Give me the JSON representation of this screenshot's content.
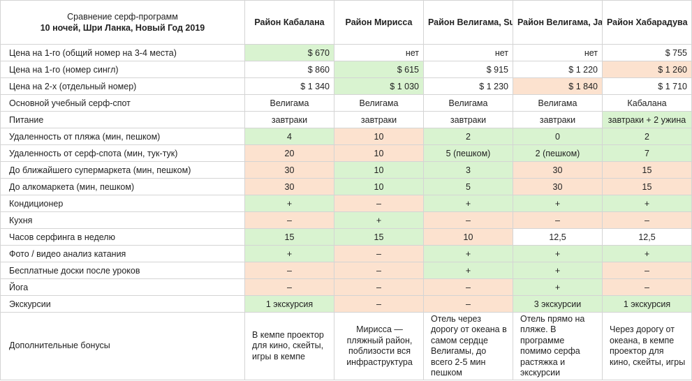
{
  "colors": {
    "good": "#d9f3d0",
    "bad": "#fce2cf",
    "border": "#d4d4d4"
  },
  "header": {
    "title_line1": "Сравнение серф-программ",
    "title_line2": "10 ночей, Шри Ланка, Новый Год 2019",
    "columns": [
      "Район Кабалана",
      "Район Мирисса",
      "Район Велигама, SurfsUp",
      "Район Велигама, Jagabay",
      "Район Хабарадува"
    ]
  },
  "rows": [
    {
      "label": "Цена на 1-го (общий номер на 3-4 места)",
      "align": "r",
      "cells": [
        {
          "v": "$ 670",
          "c": "g"
        },
        {
          "v": "нет",
          "c": ""
        },
        {
          "v": "нет",
          "c": ""
        },
        {
          "v": "нет",
          "c": ""
        },
        {
          "v": "$ 755",
          "c": ""
        }
      ]
    },
    {
      "label": "Цена на 1-го (номер сингл)",
      "align": "r",
      "cells": [
        {
          "v": "$ 860",
          "c": ""
        },
        {
          "v": "$ 615",
          "c": "g"
        },
        {
          "v": "$ 915",
          "c": ""
        },
        {
          "v": "$ 1 220",
          "c": ""
        },
        {
          "v": "$ 1 260",
          "c": "o"
        }
      ]
    },
    {
      "label": "Цена на 2-х (отдельный номер)",
      "align": "r",
      "cells": [
        {
          "v": "$ 1 340",
          "c": ""
        },
        {
          "v": "$ 1 030",
          "c": "g"
        },
        {
          "v": "$ 1 230",
          "c": ""
        },
        {
          "v": "$ 1 840",
          "c": "o"
        },
        {
          "v": "$ 1 710",
          "c": ""
        }
      ]
    },
    {
      "label": "Основной учебный серф-спот",
      "align": "c",
      "cells": [
        {
          "v": "Велигама",
          "c": ""
        },
        {
          "v": "Велигама",
          "c": ""
        },
        {
          "v": "Велигама",
          "c": ""
        },
        {
          "v": "Велигама",
          "c": ""
        },
        {
          "v": "Кабалана",
          "c": ""
        }
      ]
    },
    {
      "label": "Питание",
      "align": "c",
      "cells": [
        {
          "v": "завтраки",
          "c": ""
        },
        {
          "v": "завтраки",
          "c": ""
        },
        {
          "v": "завтраки",
          "c": ""
        },
        {
          "v": "завтраки",
          "c": ""
        },
        {
          "v": "завтраки + 2 ужина",
          "c": "g"
        }
      ]
    },
    {
      "label": "Удаленность от пляжа (мин, пешком)",
      "align": "c",
      "cells": [
        {
          "v": "4",
          "c": "g"
        },
        {
          "v": "10",
          "c": "o"
        },
        {
          "v": "2",
          "c": "g"
        },
        {
          "v": "0",
          "c": "g"
        },
        {
          "v": "2",
          "c": "g"
        }
      ]
    },
    {
      "label": "Удаленность от серф-спота (мин, тук-тук)",
      "align": "c",
      "cells": [
        {
          "v": "20",
          "c": "o"
        },
        {
          "v": "10",
          "c": "o"
        },
        {
          "v": "5 (пешком)",
          "c": "g"
        },
        {
          "v": "2 (пешком)",
          "c": "g"
        },
        {
          "v": "7",
          "c": "g"
        }
      ]
    },
    {
      "label": "До ближайшего супермаркета (мин, пешком)",
      "align": "c",
      "cells": [
        {
          "v": "30",
          "c": "o"
        },
        {
          "v": "10",
          "c": "g"
        },
        {
          "v": "3",
          "c": "g"
        },
        {
          "v": "30",
          "c": "o"
        },
        {
          "v": "15",
          "c": "o"
        }
      ]
    },
    {
      "label": "До алкомаркета (мин, пешком)",
      "align": "c",
      "cells": [
        {
          "v": "30",
          "c": "o"
        },
        {
          "v": "10",
          "c": "g"
        },
        {
          "v": "5",
          "c": "g"
        },
        {
          "v": "30",
          "c": "o"
        },
        {
          "v": "15",
          "c": "o"
        }
      ]
    },
    {
      "label": "Кондиционер",
      "align": "c",
      "cells": [
        {
          "v": "+",
          "c": "g"
        },
        {
          "v": "–",
          "c": "o"
        },
        {
          "v": "+",
          "c": "g"
        },
        {
          "v": "+",
          "c": "g"
        },
        {
          "v": "+",
          "c": "g"
        }
      ]
    },
    {
      "label": "Кухня",
      "align": "c",
      "cells": [
        {
          "v": "–",
          "c": "o"
        },
        {
          "v": "+",
          "c": "g"
        },
        {
          "v": "–",
          "c": "o"
        },
        {
          "v": "–",
          "c": "o"
        },
        {
          "v": "–",
          "c": "o"
        }
      ]
    },
    {
      "label": "Часов серфинга в неделю",
      "align": "c",
      "cells": [
        {
          "v": "15",
          "c": "g"
        },
        {
          "v": "15",
          "c": "g"
        },
        {
          "v": "10",
          "c": "o"
        },
        {
          "v": "12,5",
          "c": ""
        },
        {
          "v": "12,5",
          "c": ""
        }
      ]
    },
    {
      "label": "Фото / видео анализ катания",
      "align": "c",
      "cells": [
        {
          "v": "+",
          "c": "g"
        },
        {
          "v": "–",
          "c": "o"
        },
        {
          "v": "+",
          "c": "g"
        },
        {
          "v": "+",
          "c": "g"
        },
        {
          "v": "+",
          "c": "g"
        }
      ]
    },
    {
      "label": "Бесплатные доски после уроков",
      "align": "c",
      "cells": [
        {
          "v": "–",
          "c": "o"
        },
        {
          "v": "–",
          "c": "o"
        },
        {
          "v": "+",
          "c": "g"
        },
        {
          "v": "+",
          "c": "g"
        },
        {
          "v": "–",
          "c": "o"
        }
      ]
    },
    {
      "label": "Йога",
      "align": "c",
      "cells": [
        {
          "v": "–",
          "c": "o"
        },
        {
          "v": "–",
          "c": "o"
        },
        {
          "v": "–",
          "c": "o"
        },
        {
          "v": "+",
          "c": "g"
        },
        {
          "v": "–",
          "c": "o"
        }
      ]
    },
    {
      "label": "Экскурсии",
      "align": "c",
      "cells": [
        {
          "v": "1 экскурсия",
          "c": "g"
        },
        {
          "v": "–",
          "c": "o"
        },
        {
          "v": "–",
          "c": "o"
        },
        {
          "v": "3 экскурсии",
          "c": "g"
        },
        {
          "v": "1 экскурсия",
          "c": "g"
        }
      ]
    }
  ],
  "bonus": {
    "label": "Дополнительные бонусы",
    "cells": [
      "В кемпе проектор для кино, скейты, игры в кемпе",
      "Мирисса — пляжный район, поблизости вся инфраструктура",
      "Отель через дорогу от океана в самом сердце Велигамы, до всего 2-5 мин пешком",
      "Отель прямо на пляже. В программе помимо серфа растяжка и экскурсии",
      "Через дорогу от океана, в кемпе проектор для кино, скейты, игры"
    ]
  }
}
